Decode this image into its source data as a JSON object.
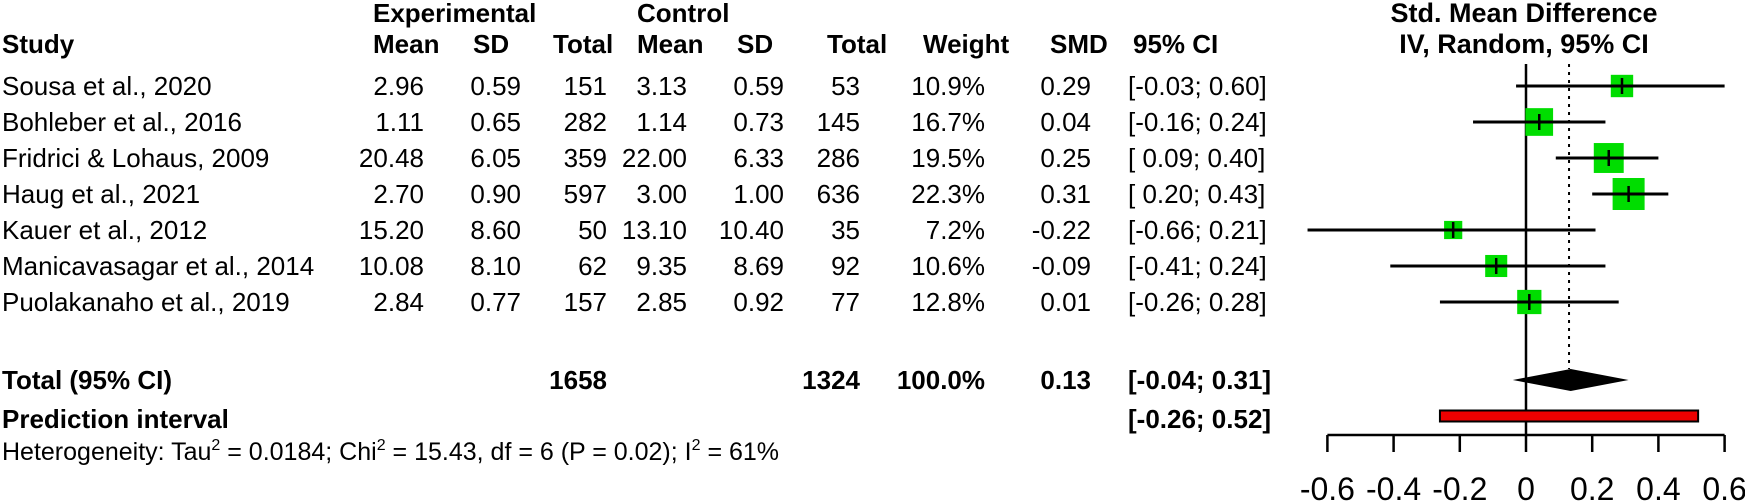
{
  "table": {
    "group_headers": {
      "experimental": "Experimental",
      "control": "Control"
    },
    "columns": {
      "study": "Study",
      "exp_mean": "Mean",
      "exp_sd": "SD",
      "exp_total": "Total",
      "ctrl_mean": "Mean",
      "ctrl_sd": "SD",
      "ctrl_total": "Total",
      "weight": "Weight",
      "smd": "SMD",
      "ci": "95% CI"
    },
    "rows": [
      {
        "study": "Sousa et al., 2020",
        "exp_mean": "2.96",
        "exp_sd": "0.59",
        "exp_total": "151",
        "ctrl_mean": "3.13",
        "ctrl_sd": "0.59",
        "ctrl_total": "53",
        "weight": "10.9%",
        "smd": "0.29",
        "ci": "[-0.03; 0.60]"
      },
      {
        "study": "Bohleber et al., 2016",
        "exp_mean": "1.11",
        "exp_sd": "0.65",
        "exp_total": "282",
        "ctrl_mean": "1.14",
        "ctrl_sd": "0.73",
        "ctrl_total": "145",
        "weight": "16.7%",
        "smd": "0.04",
        "ci": "[-0.16; 0.24]"
      },
      {
        "study": "Fridrici & Lohaus, 2009",
        "exp_mean": "20.48",
        "exp_sd": "6.05",
        "exp_total": "359",
        "ctrl_mean": "22.00",
        "ctrl_sd": "6.33",
        "ctrl_total": "286",
        "weight": "19.5%",
        "smd": "0.25",
        "ci": "[ 0.09; 0.40]"
      },
      {
        "study": "Haug et al., 2021",
        "exp_mean": "2.70",
        "exp_sd": "0.90",
        "exp_total": "597",
        "ctrl_mean": "3.00",
        "ctrl_sd": "1.00",
        "ctrl_total": "636",
        "weight": "22.3%",
        "smd": "0.31",
        "ci": "[ 0.20; 0.43]"
      },
      {
        "study": "Kauer et al., 2012",
        "exp_mean": "15.20",
        "exp_sd": "8.60",
        "exp_total": "50",
        "ctrl_mean": "13.10",
        "ctrl_sd": "10.40",
        "ctrl_total": "35",
        "weight": "7.2%",
        "smd": "-0.22",
        "ci": "[-0.66; 0.21]"
      },
      {
        "study": "Manicavasagar et al., 2014",
        "exp_mean": "10.08",
        "exp_sd": "8.10",
        "exp_total": "62",
        "ctrl_mean": "9.35",
        "ctrl_sd": "8.69",
        "ctrl_total": "92",
        "weight": "10.6%",
        "smd": "-0.09",
        "ci": "[-0.41; 0.24]"
      },
      {
        "study": "Puolakanaho et al., 2019",
        "exp_mean": "2.84",
        "exp_sd": "0.77",
        "exp_total": "157",
        "ctrl_mean": "2.85",
        "ctrl_sd": "0.92",
        "ctrl_total": "77",
        "weight": "12.8%",
        "smd": "0.01",
        "ci": "[-0.26; 0.28]"
      }
    ],
    "total_row": {
      "label": "Total (95% CI)",
      "exp_total": "1658",
      "ctrl_total": "1324",
      "weight": "100.0%",
      "smd": "0.13",
      "ci": "[-0.04; 0.31]"
    },
    "prediction_row": {
      "label": "Prediction interval",
      "ci": "[-0.26; 0.52]"
    },
    "heterogeneity": {
      "parts": [
        {
          "t": "Heterogeneity: Tau",
          "sup": "2"
        },
        {
          "t": " = 0.0184; Chi",
          "sup": "2"
        },
        {
          "t": " = 15.43, df = 6 (P = 0.02); I",
          "sup": "2"
        },
        {
          "t": " = 61%"
        }
      ]
    }
  },
  "chart_data": {
    "type": "forest",
    "title": "Std. Mean Difference",
    "subtitle": "IV, Random, 95% CI",
    "xlim": [
      -0.6,
      0.6
    ],
    "x_ticks": [
      -0.6,
      -0.4,
      -0.2,
      0,
      0.2,
      0.4,
      0.6
    ],
    "x_tick_labels": [
      "-0.6",
      "-0.4",
      "-0.2",
      "0",
      "0.2",
      "0.4",
      "0.6"
    ],
    "null_line": 0,
    "pooled_line": 0.13,
    "studies": [
      {
        "name": "Sousa et al., 2020",
        "smd": 0.29,
        "ci_low": -0.03,
        "ci_high": 0.6,
        "weight": 10.9
      },
      {
        "name": "Bohleber et al., 2016",
        "smd": 0.04,
        "ci_low": -0.16,
        "ci_high": 0.24,
        "weight": 16.7
      },
      {
        "name": "Fridrici & Lohaus, 2009",
        "smd": 0.25,
        "ci_low": 0.09,
        "ci_high": 0.4,
        "weight": 19.5
      },
      {
        "name": "Haug et al., 2021",
        "smd": 0.31,
        "ci_low": 0.2,
        "ci_high": 0.43,
        "weight": 22.3
      },
      {
        "name": "Kauer et al., 2012",
        "smd": -0.22,
        "ci_low": -0.66,
        "ci_high": 0.21,
        "weight": 7.2
      },
      {
        "name": "Manicavasagar et al., 2014",
        "smd": -0.09,
        "ci_low": -0.41,
        "ci_high": 0.24,
        "weight": 10.6
      },
      {
        "name": "Puolakanaho et al., 2019",
        "smd": 0.01,
        "ci_low": -0.26,
        "ci_high": 0.28,
        "weight": 12.8
      }
    ],
    "total": {
      "smd": 0.13,
      "ci_low": -0.04,
      "ci_high": 0.31
    },
    "prediction_interval": {
      "ci_low": -0.26,
      "ci_high": 0.52
    },
    "colors": {
      "square": "#00dd00",
      "diamond": "#000000",
      "prediction_bar": "#ee0000",
      "line": "#000000"
    }
  }
}
